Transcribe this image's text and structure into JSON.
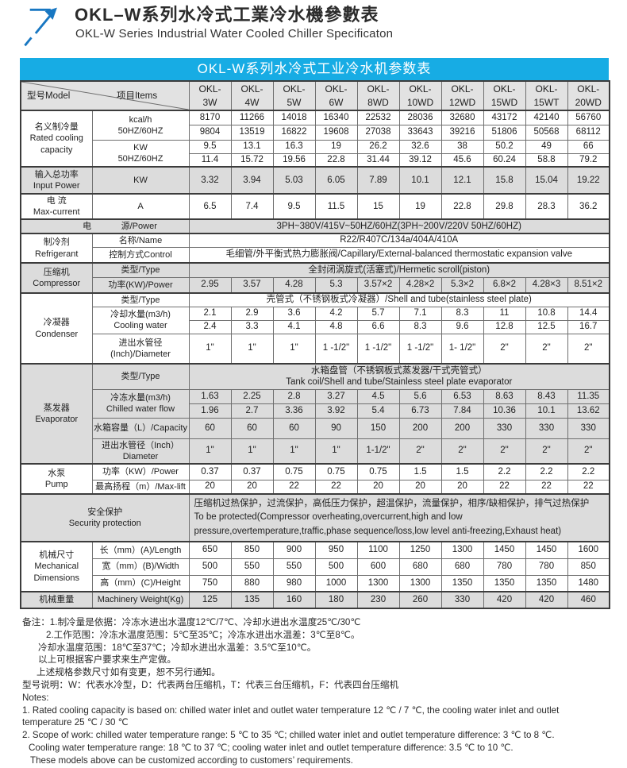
{
  "header": {
    "title_zh": "OKL–W系列水冷式工業冷水機參數表",
    "title_en": "OKL-W Series Industrial Water Cooled Chiller Specificaton",
    "logo_icon": "arrow-up-right-icon"
  },
  "colors": {
    "band_blue": "#17ACE4",
    "logo_blue": "#1877C2",
    "header_gray": "#E2E2E2",
    "row_shade_gray": "#DCDCDC",
    "border_dark": "#3C3C3C",
    "border_light": "#6F6F6F"
  },
  "table": {
    "caption": "OKL-W系列水冷式工业冷水机参数表",
    "corner": {
      "model": "型号Model",
      "items": "项目Items"
    },
    "model_prefix": "OKL-",
    "models": [
      "3W",
      "4W",
      "5W",
      "6W",
      "8WD",
      "10WD",
      "12WD",
      "15WD",
      "15WT",
      "20WD"
    ],
    "rows": [
      {
        "sec": true,
        "shade": false,
        "label": {
          "lines": [
            "名义制冷量",
            "Rated cooling",
            "capacity"
          ],
          "rowspan": 4
        },
        "item": {
          "lines": [
            "kcal/h",
            "50HZ/60HZ"
          ],
          "rowspan": 2
        },
        "values": [
          "8170",
          "11266",
          "14018",
          "16340",
          "22532",
          "28036",
          "32680",
          "43172",
          "42140",
          "56760"
        ]
      },
      {
        "values": [
          "9804",
          "13519",
          "16822",
          "19608",
          "27038",
          "33643",
          "39216",
          "51806",
          "50568",
          "68112"
        ]
      },
      {
        "item": {
          "lines": [
            "KW",
            "50HZ/60HZ"
          ],
          "rowspan": 2
        },
        "values": [
          "9.5",
          "13.1",
          "16.3",
          "19",
          "26.2",
          "32.6",
          "38",
          "50.2",
          "49",
          "66"
        ]
      },
      {
        "values": [
          "11.4",
          "15.72",
          "19.56",
          "22.8",
          "31.44",
          "39.12",
          "45.6",
          "60.24",
          "58.8",
          "79.2"
        ]
      },
      {
        "sec": true,
        "shade": true,
        "label": {
          "lines": [
            "输入总功率",
            "Input Power"
          ]
        },
        "item": {
          "lines": [
            "KW"
          ]
        },
        "values": [
          "3.32",
          "3.94",
          "5.03",
          "6.05",
          "7.89",
          "10.1",
          "12.1",
          "15.8",
          "15.04",
          "19.22"
        ]
      },
      {
        "sec": true,
        "shade": false,
        "label": {
          "lines": [
            "电 流",
            "Max-current"
          ]
        },
        "item": {
          "lines": [
            "A"
          ]
        },
        "values": [
          "6.5",
          "7.4",
          "9.5",
          "11.5",
          "15",
          "19",
          "22.8",
          "29.8",
          "28.3",
          "36.2"
        ]
      },
      {
        "sec": true,
        "shade": true,
        "label": {
          "parts": [
            "电",
            "源/Power"
          ],
          "colspan": 2
        },
        "merged": {
          "lines": [
            "3PH~380V/415V~50HZ/60HZ(3PH~200V/220V  50HZ/60HZ)"
          ]
        }
      },
      {
        "sec": true,
        "shade": false,
        "label": {
          "lines": [
            "制冷剂",
            "Refrigerant"
          ],
          "rowspan": 2
        },
        "item": {
          "lines": [
            "名称/Name"
          ]
        },
        "merged": {
          "lines": [
            "R22/R407C/134a/404A/410A"
          ]
        }
      },
      {
        "item": {
          "lines": [
            "控制方式Control"
          ]
        },
        "merged": {
          "lines": [
            "毛细管/外平衡式热力膨胀阀/Capillary/External-balanced thermostatic expansion valve"
          ]
        }
      },
      {
        "sec": true,
        "shade": true,
        "label": {
          "lines": [
            "压缩机",
            "Compressor"
          ],
          "rowspan": 2
        },
        "item": {
          "lines": [
            "类型/Type"
          ]
        },
        "merged": {
          "lines": [
            "全封闭涡旋式(活塞式)/Hermetic scroll(piston)"
          ]
        }
      },
      {
        "item": {
          "lines": [
            "功率(KW)/Power"
          ]
        },
        "values": [
          "2.95",
          "3.57",
          "4.28",
          "5.3",
          "3.57×2",
          "4.28×2",
          "5.3×2",
          "6.8×2",
          "4.28×3",
          "8.51×2"
        ]
      },
      {
        "sec": true,
        "shade": false,
        "label": {
          "lines": [
            "冷凝器",
            "Condenser"
          ],
          "rowspan": 4
        },
        "item": {
          "lines": [
            "类型/Type"
          ]
        },
        "merged": {
          "lines": [
            "壳管式（不锈钢板式冷凝器）/Shell and tube(stainless steel plate)"
          ]
        }
      },
      {
        "item": {
          "lines": [
            "冷却水量(m3/h)",
            "Cooling water"
          ],
          "rowspan": 2
        },
        "values": [
          "2.1",
          "2.9",
          "3.6",
          "4.2",
          "5.7",
          "7.1",
          "8.3",
          "11",
          "10.8",
          "14.4"
        ]
      },
      {
        "values": [
          "2.4",
          "3.3",
          "4.1",
          "4.8",
          "6.6",
          "8.3",
          "9.6",
          "12.8",
          "12.5",
          "16.7"
        ]
      },
      {
        "item": {
          "lines": [
            "进出水管径",
            "(Inch)/Diameter"
          ]
        },
        "values": [
          "1\"",
          "1\"",
          "1\"",
          "1 -1/2\"",
          "1 -1/2\"",
          "1 -1/2\"",
          "1- 1/2\"",
          "2\"",
          "2\"",
          "2\""
        ]
      },
      {
        "sec": true,
        "shade": true,
        "label": {
          "lines": [
            "蒸发器",
            "Evaporator"
          ],
          "rowspan": 5
        },
        "item": {
          "lines": [
            "类型/Type"
          ]
        },
        "merged": {
          "lines": [
            "水箱盘管（不锈钢板式蒸发器/干式壳管式）",
            "Tank coil/Shell and tube/Stainless steel plate evaporator"
          ]
        }
      },
      {
        "item": {
          "lines": [
            "冷冻水量(m3/h)",
            "Chilled water flow"
          ],
          "rowspan": 2
        },
        "values": [
          "1.63",
          "2.25",
          "2.8",
          "3.27",
          "4.5",
          "5.6",
          "6.53",
          "8.63",
          "8.43",
          "11.35"
        ]
      },
      {
        "values": [
          "1.96",
          "2.7",
          "3.36",
          "3.92",
          "5.4",
          "6.73",
          "7.84",
          "10.36",
          "10.1",
          "13.62"
        ]
      },
      {
        "item": {
          "lines": [
            "水箱容量（L）/Capacity"
          ]
        },
        "values": [
          "60",
          "60",
          "60",
          "90",
          "150",
          "200",
          "200",
          "330",
          "330",
          "330"
        ]
      },
      {
        "item": {
          "lines": [
            "进出水管径（Inch）",
            "Diameter"
          ]
        },
        "values": [
          "1\"",
          "1\"",
          "1\"",
          "1\"",
          "1-1/2\"",
          "2\"",
          "2\"",
          "2\"",
          "2\"",
          "2\""
        ]
      },
      {
        "sec": true,
        "shade": false,
        "label": {
          "lines": [
            "水泵",
            "Pump"
          ],
          "rowspan": 2
        },
        "item": {
          "lines": [
            "功率（KW）/Power"
          ]
        },
        "values": [
          "0.37",
          "0.37",
          "0.75",
          "0.75",
          "0.75",
          "1.5",
          "1.5",
          "2.2",
          "2.2",
          "2.2"
        ]
      },
      {
        "item": {
          "lines": [
            "最高扬程（m）/Max-lift"
          ]
        },
        "values": [
          "20",
          "20",
          "22",
          "22",
          "20",
          "20",
          "20",
          "22",
          "22",
          "22"
        ]
      },
      {
        "sec": true,
        "shade": true,
        "label": {
          "lines": [
            "安全保护",
            "Security protection"
          ],
          "colspan": 2
        },
        "merged": {
          "align": "left",
          "lines": [
            "压缩机过热保护，过流保护，高低压力保护，超温保护，流量保护，相序/缺相保护，排气过热保护",
            "To be protected(Compressor overheating,overcurrent,high and low",
            "pressure,overtemperature,traffic,phase sequence/loss,low level anti-freezing,Exhaust heat)"
          ]
        }
      },
      {
        "sec": true,
        "shade": false,
        "label": {
          "lines": [
            "机械尺寸",
            "Mechanical",
            "Dimensions"
          ],
          "rowspan": 3
        },
        "item": {
          "lines": [
            "长（mm）(A)/Length"
          ]
        },
        "values": [
          "650",
          "850",
          "900",
          "950",
          "1100",
          "1250",
          "1300",
          "1450",
          "1450",
          "1600"
        ]
      },
      {
        "item": {
          "lines": [
            "宽（mm）(B)/Width"
          ]
        },
        "values": [
          "500",
          "550",
          "550",
          "500",
          "600",
          "680",
          "680",
          "780",
          "780",
          "850"
        ]
      },
      {
        "item": {
          "lines": [
            "高（mm）(C)/Height"
          ]
        },
        "values": [
          "750",
          "880",
          "980",
          "1000",
          "1300",
          "1300",
          "1350",
          "1350",
          "1350",
          "1480"
        ]
      },
      {
        "sec": true,
        "shade": true,
        "label": {
          "lines": [
            "机械重量"
          ]
        },
        "item": {
          "lines": [
            "Machinery Weight(Kg)"
          ]
        },
        "values": [
          "125",
          "135",
          "160",
          "180",
          "230",
          "260",
          "330",
          "420",
          "420",
          "460"
        ]
      }
    ]
  },
  "notes": {
    "zh": [
      {
        "t": "备注：1.制冷量是依据：冷冻水进出水温度12℃/7℃、冷却水进出水温度25℃/30℃",
        "i": 0
      },
      {
        "t": "2.工作范围：冷冻水温度范围：5℃至35℃；冷冻水进出水温差：3℃至8℃。",
        "i": 30
      },
      {
        "t": "冷却水温度范围：18℃至37℃；冷却水进出水温差：3.5℃至10℃。",
        "i": 20
      },
      {
        "t": "以上可根据客户要求来生产定做。",
        "i": 20
      },
      {
        "t": "上述规格参数尺寸如有变更，恕不另行通知。",
        "i": 18
      },
      {
        "t": "型号说明：W：代表水冷型，D：代表两台压缩机，T：代表三台压缩机，F：代表四台压缩机",
        "i": 0
      }
    ],
    "en": [
      {
        "t": "Notes:",
        "i": 0
      },
      {
        "t": "1. Rated cooling capacity is based on: chilled water inlet and outlet water temperature 12 ℃ / 7 ℃, the cooling water inlet and outlet",
        "i": 0
      },
      {
        "t": "temperature 25 ℃ / 30 ℃",
        "i": 0
      },
      {
        "t": "2. Scope of work: chilled water temperature range: 5 ℃ to 35 ℃; chilled water inlet and outlet temperature difference: 3 ℃ to 8 ℃.",
        "i": 0
      },
      {
        "t": "Cooling water temperature range: 18 ℃ to 37 ℃; cooling water inlet and outlet temperature difference: 3.5 ℃ to 10 ℃.",
        "i": 8
      },
      {
        "t": "These models above can be customized according to customers’  requirements.",
        "i": 10
      }
    ]
  }
}
